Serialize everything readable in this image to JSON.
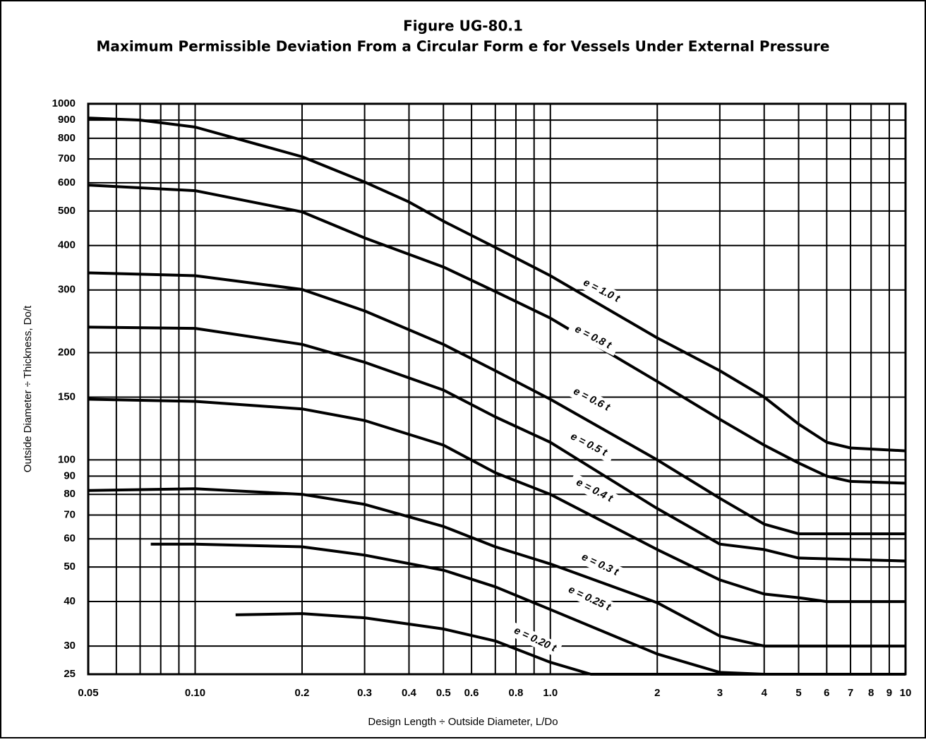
{
  "chart_data": {
    "type": "line",
    "title": "Figure UG-80.1",
    "subtitle": "Maximum Permissible Deviation From a Circular Form e for Vessels Under External Pressure",
    "x_label": "Design Length ÷ Outside Diameter, L/Do",
    "y_label": "Outside Diameter ÷ Thickness, Do/t",
    "log_x": true,
    "log_y": true,
    "grid": true,
    "color": "#000000",
    "xlim": [
      0.05,
      10
    ],
    "ylim": [
      25,
      1000
    ],
    "xticks": [
      0.05,
      {
        "value": 0.1,
        "label": "0.10"
      },
      0.2,
      0.3,
      0.4,
      0.5,
      0.6,
      0.8,
      {
        "value": 1,
        "label": "1.0"
      },
      2,
      3,
      4,
      5,
      6,
      7,
      8,
      9,
      10
    ],
    "xgrid_minor": [
      0.06,
      0.07,
      0.08,
      0.09,
      0.7,
      0.9
    ],
    "yticks": [
      25,
      30,
      40,
      50,
      60,
      70,
      80,
      90,
      100,
      150,
      200,
      300,
      400,
      500,
      600,
      700,
      800,
      900,
      1000
    ],
    "series": [
      {
        "name": "e = 1.0 t",
        "x": [
          0.05,
          0.07,
          0.1,
          0.2,
          0.3,
          0.4,
          0.5,
          0.7,
          1,
          2,
          3,
          4,
          5,
          6,
          7,
          10
        ],
        "values": [
          912,
          900,
          860,
          710,
          603,
          530,
          468,
          395,
          329,
          220,
          178,
          150,
          126,
          112,
          108,
          106
        ]
      },
      {
        "name": "e = 0.8 t",
        "x": [
          0.05,
          0.1,
          0.2,
          0.3,
          0.5,
          0.7,
          1,
          2,
          3,
          4,
          5,
          6,
          7,
          10
        ],
        "values": [
          591,
          570,
          497,
          420,
          348,
          297,
          250,
          166,
          130,
          110,
          98,
          90,
          87,
          86
        ]
      },
      {
        "name": "e = 0.6 t",
        "x": [
          0.05,
          0.1,
          0.2,
          0.3,
          0.5,
          0.7,
          1,
          2,
          3,
          4,
          5,
          6,
          10
        ],
        "values": [
          335,
          329,
          301,
          262,
          211,
          178,
          148,
          100,
          78,
          66,
          62,
          62,
          62
        ]
      },
      {
        "name": "e = 0.5 t",
        "x": [
          0.05,
          0.1,
          0.2,
          0.3,
          0.5,
          0.7,
          1,
          2,
          3,
          4,
          5,
          10
        ],
        "values": [
          236,
          234,
          211,
          188,
          157,
          132,
          112,
          73,
          58,
          56,
          53,
          52
        ]
      },
      {
        "name": "e = 0.4 t",
        "x": [
          0.05,
          0.1,
          0.2,
          0.3,
          0.5,
          0.7,
          1,
          2,
          3,
          4,
          5,
          6,
          10
        ],
        "values": [
          148,
          146,
          139,
          129,
          110,
          92,
          80,
          56,
          46,
          42,
          41,
          40,
          40
        ]
      },
      {
        "name": "e = 0.3 t",
        "x": [
          0.05,
          0.1,
          0.2,
          0.3,
          0.5,
          0.7,
          1,
          2,
          3,
          4,
          10
        ],
        "values": [
          82,
          83,
          80,
          75,
          65,
          57,
          51,
          39.7,
          32,
          30,
          30
        ]
      },
      {
        "name": "e = 0.25 t",
        "x": [
          0.075,
          0.1,
          0.2,
          0.3,
          0.5,
          0.7,
          1,
          2,
          3,
          4,
          10
        ],
        "values": [
          58,
          58,
          57,
          54,
          49,
          44,
          38,
          28.5,
          25.3,
          25,
          25
        ]
      },
      {
        "name": "e = 0.20 t",
        "x": [
          0.13,
          0.2,
          0.3,
          0.5,
          0.7,
          1,
          1.3,
          10
        ],
        "values": [
          36.7,
          37,
          36,
          33.5,
          31,
          27,
          25,
          25
        ]
      }
    ]
  }
}
